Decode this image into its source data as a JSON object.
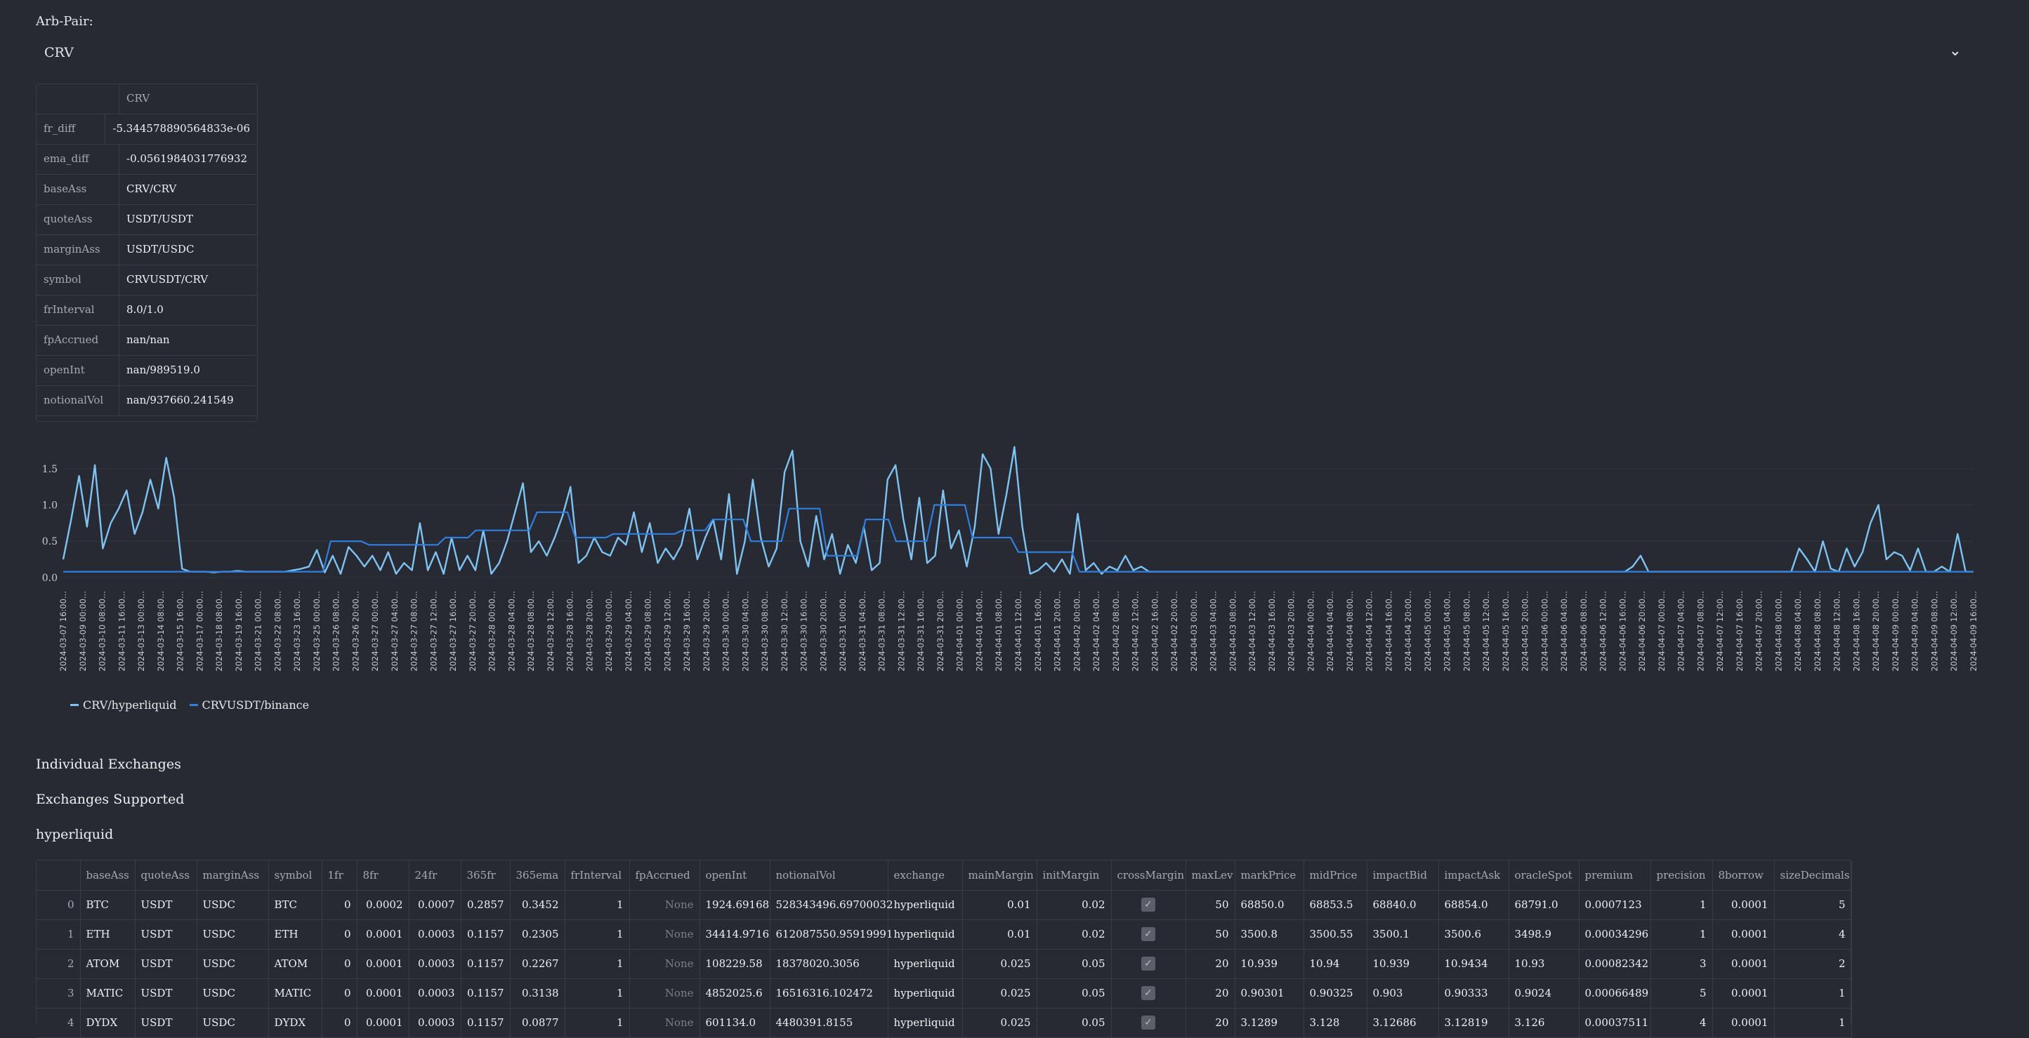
{
  "selector": {
    "label": "Arb-Pair:",
    "value": "CRV",
    "chevron_icon": "chevron-down-icon"
  },
  "summary_table": {
    "header": "CRV",
    "rows": [
      {
        "key": "fr_diff",
        "value": "-5.344578890564833e-06"
      },
      {
        "key": "ema_diff",
        "value": "-0.0561984031776932"
      },
      {
        "key": "baseAss",
        "value": "CRV/CRV"
      },
      {
        "key": "quoteAss",
        "value": "USDT/USDT"
      },
      {
        "key": "marginAss",
        "value": "USDT/USDC"
      },
      {
        "key": "symbol",
        "value": "CRVUSDT/CRV"
      },
      {
        "key": "frInterval",
        "value": "8.0/1.0"
      },
      {
        "key": "fpAccrued",
        "value": "nan/nan"
      },
      {
        "key": "openInt",
        "value": "nan/989519.0"
      },
      {
        "key": "notionalVol",
        "value": "nan/937660.241549"
      }
    ]
  },
  "chart_data": {
    "type": "line",
    "ylim": [
      -0.05,
      1.75
    ],
    "yticks": [
      0.0,
      0.5,
      1.0,
      1.5
    ],
    "xlabels": [
      "2024-03-07 16:00...",
      "2024-03-09 00:00...",
      "2024-03-10 08:00...",
      "2024-03-11 16:00...",
      "2024-03-13 00:00...",
      "2024-03-14 08:00...",
      "2024-03-15 16:00...",
      "2024-03-17 00:00...",
      "2024-03-18 08:00...",
      "2024-03-19 16:00...",
      "2024-03-21 00:00...",
      "2024-03-22 08:00...",
      "2024-03-23 16:00...",
      "2024-03-25 00:00...",
      "2024-03-26 08:00...",
      "2024-03-26 20:00...",
      "2024-03-27 00:00...",
      "2024-03-27 04:00...",
      "2024-03-27 08:00...",
      "2024-03-27 12:00...",
      "2024-03-27 16:00...",
      "2024-03-27 20:00...",
      "2024-03-28 00:00...",
      "2024-03-28 04:00...",
      "2024-03-28 08:00...",
      "2024-03-28 12:00...",
      "2024-03-28 16:00...",
      "2024-03-28 20:00...",
      "2024-03-29 00:00...",
      "2024-03-29 04:00...",
      "2024-03-29 08:00...",
      "2024-03-29 12:00...",
      "2024-03-29 16:00...",
      "2024-03-29 20:00...",
      "2024-03-30 00:00...",
      "2024-03-30 04:00...",
      "2024-03-30 08:00...",
      "2024-03-30 12:00...",
      "2024-03-30 16:00...",
      "2024-03-30 20:00...",
      "2024-03-31 00:00...",
      "2024-03-31 04:00...",
      "2024-03-31 08:00...",
      "2024-03-31 12:00...",
      "2024-03-31 16:00...",
      "2024-03-31 20:00...",
      "2024-04-01 00:00...",
      "2024-04-01 04:00...",
      "2024-04-01 08:00...",
      "2024-04-01 12:00...",
      "2024-04-01 16:00...",
      "2024-04-01 20:00...",
      "2024-04-02 00:00...",
      "2024-04-02 04:00...",
      "2024-04-02 08:00...",
      "2024-04-02 12:00...",
      "2024-04-02 16:00...",
      "2024-04-02 20:00...",
      "2024-04-03 00:00...",
      "2024-04-03 04:00...",
      "2024-04-03 08:00...",
      "2024-04-03 12:00...",
      "2024-04-03 16:00...",
      "2024-04-03 20:00...",
      "2024-04-04 00:00...",
      "2024-04-04 04:00...",
      "2024-04-04 08:00...",
      "2024-04-04 12:00...",
      "2024-04-04 16:00...",
      "2024-04-04 20:00...",
      "2024-04-05 00:00...",
      "2024-04-05 04:00...",
      "2024-04-05 08:00...",
      "2024-04-05 12:00...",
      "2024-04-05 16:00...",
      "2024-04-05 20:00...",
      "2024-04-06 00:00...",
      "2024-04-06 04:00...",
      "2024-04-06 08:00...",
      "2024-04-06 12:00...",
      "2024-04-06 16:00...",
      "2024-04-06 20:00...",
      "2024-04-07 00:00...",
      "2024-04-07 04:00...",
      "2024-04-07 08:00...",
      "2024-04-07 12:00...",
      "2024-04-07 16:00...",
      "2024-04-07 20:00...",
      "2024-04-08 00:00...",
      "2024-04-08 04:00...",
      "2024-04-08 08:00...",
      "2024-04-08 12:00...",
      "2024-04-08 16:00...",
      "2024-04-08 20:00...",
      "2024-04-09 00:00...",
      "2024-04-09 04:00...",
      "2024-04-09 08:00...",
      "2024-04-09 12:00...",
      "2024-04-09 16:00..."
    ],
    "series": [
      {
        "name": "CRV/hyperliquid",
        "color": "#7ec3f2",
        "values": [
          0.25,
          0.8,
          1.4,
          0.7,
          1.55,
          0.4,
          0.75,
          0.95,
          1.2,
          0.6,
          0.9,
          1.35,
          0.95,
          1.65,
          1.1,
          0.12,
          0.08,
          0.08,
          0.08,
          0.07,
          0.08,
          0.08,
          0.09,
          0.08,
          0.08,
          0.08,
          0.08,
          0.08,
          0.08,
          0.1,
          0.12,
          0.15,
          0.38,
          0.07,
          0.3,
          0.05,
          0.42,
          0.3,
          0.15,
          0.3,
          0.1,
          0.35,
          0.05,
          0.2,
          0.1,
          0.75,
          0.1,
          0.35,
          0.05,
          0.55,
          0.1,
          0.3,
          0.1,
          0.65,
          0.05,
          0.2,
          0.5,
          0.9,
          1.3,
          0.35,
          0.5,
          0.3,
          0.55,
          0.85,
          1.25,
          0.2,
          0.3,
          0.55,
          0.35,
          0.3,
          0.55,
          0.45,
          0.9,
          0.35,
          0.75,
          0.2,
          0.4,
          0.25,
          0.45,
          0.95,
          0.25,
          0.55,
          0.8,
          0.25,
          1.15,
          0.05,
          0.5,
          1.35,
          0.55,
          0.15,
          0.4,
          1.45,
          1.75,
          0.5,
          0.15,
          0.85,
          0.25,
          0.6,
          0.05,
          0.45,
          0.2,
          0.7,
          0.1,
          0.2,
          1.35,
          1.55,
          0.8,
          0.25,
          1.1,
          0.2,
          0.3,
          1.2,
          0.4,
          0.65,
          0.15,
          0.7,
          1.7,
          1.5,
          0.6,
          1.15,
          1.8,
          0.7,
          0.05,
          0.1,
          0.2,
          0.08,
          0.25,
          0.05,
          0.88,
          0.1,
          0.2,
          0.05,
          0.15,
          0.1,
          0.3,
          0.1,
          0.15,
          0.08,
          0.08,
          0.08,
          0.08,
          0.08,
          0.08,
          0.08,
          0.08,
          0.08,
          0.08,
          0.08,
          0.08,
          0.08,
          0.08,
          0.08,
          0.08,
          0.08,
          0.08,
          0.08,
          0.08,
          0.08,
          0.08,
          0.08,
          0.08,
          0.08,
          0.08,
          0.08,
          0.08,
          0.08,
          0.08,
          0.08,
          0.08,
          0.08,
          0.08,
          0.08,
          0.08,
          0.08,
          0.08,
          0.08,
          0.08,
          0.08,
          0.08,
          0.08,
          0.08,
          0.08,
          0.08,
          0.08,
          0.08,
          0.08,
          0.08,
          0.08,
          0.08,
          0.08,
          0.08,
          0.08,
          0.08,
          0.08,
          0.08,
          0.08,
          0.08,
          0.08,
          0.15,
          0.3,
          0.08,
          0.08,
          0.08,
          0.08,
          0.08,
          0.08,
          0.08,
          0.08,
          0.08,
          0.08,
          0.08,
          0.08,
          0.08,
          0.08,
          0.08,
          0.08,
          0.08,
          0.08,
          0.08,
          0.4,
          0.25,
          0.08,
          0.5,
          0.12,
          0.08,
          0.4,
          0.15,
          0.35,
          0.75,
          1.0,
          0.25,
          0.35,
          0.3,
          0.1,
          0.4,
          0.08,
          0.08,
          0.15,
          0.08,
          0.6,
          0.08,
          0.08
        ]
      },
      {
        "name": "CRVUSDT/binance",
        "color": "#2f7fe0",
        "values": [
          0.08,
          0.08,
          0.08,
          0.08,
          0.08,
          0.08,
          0.08,
          0.08,
          0.08,
          0.08,
          0.08,
          0.08,
          0.08,
          0.08,
          0.08,
          0.08,
          0.08,
          0.08,
          0.08,
          0.08,
          0.08,
          0.08,
          0.08,
          0.08,
          0.08,
          0.08,
          0.08,
          0.08,
          0.08,
          0.08,
          0.08,
          0.08,
          0.08,
          0.08,
          0.08,
          0.5,
          0.5,
          0.5,
          0.5,
          0.5,
          0.45,
          0.45,
          0.45,
          0.45,
          0.45,
          0.45,
          0.45,
          0.45,
          0.45,
          0.45,
          0.55,
          0.55,
          0.55,
          0.55,
          0.65,
          0.65,
          0.65,
          0.65,
          0.65,
          0.65,
          0.65,
          0.65,
          0.9,
          0.9,
          0.9,
          0.9,
          0.9,
          0.55,
          0.55,
          0.55,
          0.55,
          0.55,
          0.6,
          0.6,
          0.6,
          0.6,
          0.6,
          0.6,
          0.6,
          0.6,
          0.6,
          0.65,
          0.65,
          0.65,
          0.65,
          0.8,
          0.8,
          0.8,
          0.8,
          0.8,
          0.5,
          0.5,
          0.5,
          0.5,
          0.5,
          0.95,
          0.95,
          0.95,
          0.95,
          0.95,
          0.3,
          0.3,
          0.3,
          0.3,
          0.3,
          0.8,
          0.8,
          0.8,
          0.8,
          0.5,
          0.5,
          0.5,
          0.5,
          0.5,
          1.0,
          1.0,
          1.0,
          1.0,
          1.0,
          0.55,
          0.55,
          0.55,
          0.55,
          0.55,
          0.55,
          0.35,
          0.35,
          0.35,
          0.35,
          0.35,
          0.35,
          0.35,
          0.35,
          0.08,
          0.08,
          0.08,
          0.08,
          0.08,
          0.08,
          0.08,
          0.08,
          0.08,
          0.08,
          0.08,
          0.08,
          0.08,
          0.08,
          0.08,
          0.08,
          0.08,
          0.08,
          0.08,
          0.08,
          0.08,
          0.08,
          0.08,
          0.08,
          0.08,
          0.08,
          0.08,
          0.08,
          0.08,
          0.08,
          0.08,
          0.08,
          0.08,
          0.08,
          0.08,
          0.08,
          0.08,
          0.08,
          0.08,
          0.08,
          0.08,
          0.08,
          0.08,
          0.08,
          0.08,
          0.08,
          0.08,
          0.08,
          0.08,
          0.08,
          0.08,
          0.08,
          0.08,
          0.08,
          0.08,
          0.08,
          0.08,
          0.08,
          0.08,
          0.08,
          0.08,
          0.08,
          0.08,
          0.08,
          0.08,
          0.08,
          0.08,
          0.08,
          0.08,
          0.08,
          0.08,
          0.08,
          0.08,
          0.08,
          0.08,
          0.08,
          0.08,
          0.08,
          0.08,
          0.08,
          0.08,
          0.08,
          0.08,
          0.08,
          0.08,
          0.08,
          0.08,
          0.08,
          0.08,
          0.08,
          0.08,
          0.08,
          0.08,
          0.08,
          0.08,
          0.08,
          0.08,
          0.08,
          0.08,
          0.08,
          0.08,
          0.08,
          0.08,
          0.08,
          0.08,
          0.08,
          0.08,
          0.08,
          0.08,
          0.08,
          0.08,
          0.08,
          0.08,
          0.08,
          0.08,
          0.08,
          0.08,
          0.08
        ]
      }
    ]
  },
  "headings": {
    "individual": "Individual Exchanges",
    "supported": "Exchanges Supported",
    "exchange": "hyperliquid"
  },
  "exchange_table": {
    "columns": [
      "",
      "baseAss",
      "quoteAss",
      "marginAss",
      "symbol",
      "1fr",
      "8fr",
      "24fr",
      "365fr",
      "365ema",
      "frInterval",
      "fpAccrued",
      "openInt",
      "notionalVol",
      "exchange",
      "mainMargin",
      "initMargin",
      "crossMargin",
      "maxLev",
      "markPrice",
      "midPrice",
      "impactBid",
      "impactAsk",
      "oracleSpot",
      "premium",
      "precision",
      "8borrow",
      "sizeDecimals"
    ],
    "rows": [
      [
        "0",
        "BTC",
        "USDT",
        "USDC",
        "BTC",
        "0",
        "0.0002",
        "0.0007",
        "0.2857",
        "0.3452",
        "1",
        "None",
        "1924.69168",
        "528343496.69700032",
        "hyperliquid",
        "0.01",
        "0.02",
        "true",
        "50",
        "68850.0",
        "68853.5",
        "68840.0",
        "68854.0",
        "68791.0",
        "0.0007123",
        "1",
        "0.0001",
        "5"
      ],
      [
        "1",
        "ETH",
        "USDT",
        "USDC",
        "ETH",
        "0",
        "0.0001",
        "0.0003",
        "0.1157",
        "0.2305",
        "1",
        "None",
        "34414.9716",
        "612087550.95919991",
        "hyperliquid",
        "0.01",
        "0.02",
        "true",
        "50",
        "3500.8",
        "3500.55",
        "3500.1",
        "3500.6",
        "3498.9",
        "0.00034296",
        "1",
        "0.0001",
        "4"
      ],
      [
        "2",
        "ATOM",
        "USDT",
        "USDC",
        "ATOM",
        "0",
        "0.0001",
        "0.0003",
        "0.1157",
        "0.2267",
        "1",
        "None",
        "108229.58",
        "18378020.3056",
        "hyperliquid",
        "0.025",
        "0.05",
        "true",
        "20",
        "10.939",
        "10.94",
        "10.939",
        "10.9434",
        "10.93",
        "0.00082342",
        "3",
        "0.0001",
        "2"
      ],
      [
        "3",
        "MATIC",
        "USDT",
        "USDC",
        "MATIC",
        "0",
        "0.0001",
        "0.0003",
        "0.1157",
        "0.3138",
        "1",
        "None",
        "4852025.6",
        "16516316.102472",
        "hyperliquid",
        "0.025",
        "0.05",
        "true",
        "20",
        "0.90301",
        "0.90325",
        "0.903",
        "0.90333",
        "0.9024",
        "0.00066489",
        "5",
        "0.0001",
        "1"
      ],
      [
        "4",
        "DYDX",
        "USDT",
        "USDC",
        "DYDX",
        "0",
        "0.0001",
        "0.0003",
        "0.1157",
        "0.0877",
        "1",
        "None",
        "601134.0",
        "4480391.8155",
        "hyperliquid",
        "0.025",
        "0.05",
        "true",
        "20",
        "3.1289",
        "3.128",
        "3.12686",
        "3.12819",
        "3.126",
        "0.00037511",
        "4",
        "0.0001",
        "1"
      ]
    ]
  }
}
